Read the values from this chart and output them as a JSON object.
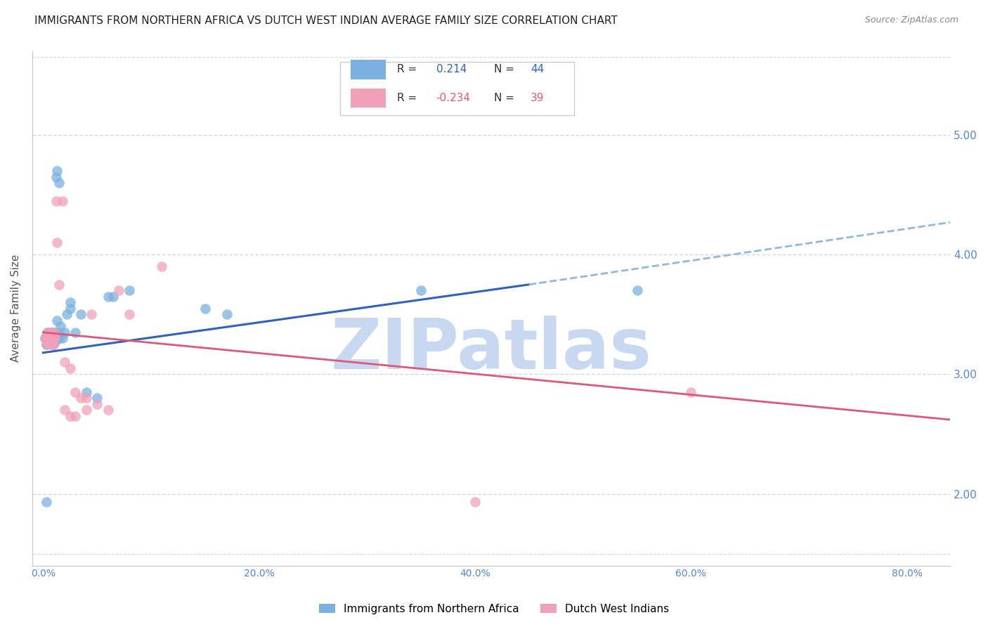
{
  "title": "IMMIGRANTS FROM NORTHERN AFRICA VS DUTCH WEST INDIAN AVERAGE FAMILY SIZE CORRELATION CHART",
  "source": "Source: ZipAtlas.com",
  "xlabel_vals": [
    0.0,
    20.0,
    40.0,
    60.0,
    80.0
  ],
  "ylabel": "Average Family Size",
  "ylim": [
    1.4,
    5.7
  ],
  "xlim": [
    -1.0,
    84.0
  ],
  "blue_scatter_x": [
    0.2,
    0.3,
    0.35,
    0.4,
    0.45,
    0.5,
    0.55,
    0.6,
    0.65,
    0.7,
    0.75,
    0.8,
    0.85,
    0.9,
    0.95,
    1.0,
    1.05,
    1.1,
    1.15,
    1.2,
    1.3,
    1.4,
    1.5,
    1.6,
    1.8,
    2.0,
    2.2,
    2.5,
    3.0,
    3.5,
    4.0,
    5.0,
    6.5,
    8.0,
    1.2,
    1.3,
    1.5,
    2.5,
    15.0,
    17.0,
    35.0,
    55.0,
    0.3,
    6.0
  ],
  "blue_scatter_y": [
    3.3,
    3.25,
    3.3,
    3.35,
    3.3,
    3.28,
    3.32,
    3.3,
    3.35,
    3.3,
    3.28,
    3.3,
    3.35,
    3.3,
    3.25,
    3.3,
    3.35,
    3.3,
    3.28,
    3.32,
    3.45,
    3.35,
    3.3,
    3.4,
    3.3,
    3.35,
    3.5,
    3.55,
    3.35,
    3.5,
    2.85,
    2.8,
    3.65,
    3.7,
    4.65,
    4.7,
    4.6,
    3.6,
    3.55,
    3.5,
    3.7,
    3.7,
    1.93,
    3.65
  ],
  "pink_scatter_x": [
    0.2,
    0.3,
    0.35,
    0.4,
    0.45,
    0.5,
    0.55,
    0.6,
    0.65,
    0.7,
    0.75,
    0.8,
    0.85,
    0.9,
    0.95,
    1.0,
    1.05,
    1.1,
    1.2,
    1.3,
    1.5,
    2.0,
    2.5,
    3.0,
    3.5,
    4.0,
    4.5,
    2.0,
    2.5,
    3.0,
    4.0,
    5.0,
    6.0,
    7.0,
    8.0,
    11.0,
    1.8,
    60.0,
    40.0
  ],
  "pink_scatter_y": [
    3.3,
    3.25,
    3.3,
    3.28,
    3.35,
    3.3,
    3.28,
    3.3,
    3.32,
    3.25,
    3.3,
    3.28,
    3.35,
    3.3,
    3.25,
    3.3,
    3.35,
    3.3,
    4.45,
    4.1,
    3.75,
    3.1,
    3.05,
    2.85,
    2.8,
    2.8,
    3.5,
    2.7,
    2.65,
    2.65,
    2.7,
    2.75,
    2.7,
    3.7,
    3.5,
    3.9,
    4.45,
    2.85,
    1.93
  ],
  "blue_color": "#7ab0e0",
  "pink_color": "#f0a0b8",
  "blue_line_color": "#3060c0",
  "pink_line_color": "#e05878",
  "blue_dash_color": "#90b8e0",
  "axis_color": "#5585d5",
  "grid_color": "#d0d8e8",
  "watermark": "ZIPatlas",
  "watermark_color": "#c8d8f0",
  "blue_line_x0": 0.0,
  "blue_line_y0": 3.18,
  "blue_line_x1": 45.0,
  "blue_line_y1": 3.75,
  "blue_dash_x0": 45.0,
  "blue_dash_y0": 3.75,
  "blue_dash_x1": 84.0,
  "blue_dash_y1": 4.27,
  "pink_line_x0": 0.0,
  "pink_line_y0": 3.35,
  "pink_line_x1": 84.0,
  "pink_line_y1": 2.62,
  "legend_r_blue": "0.214",
  "legend_n_blue": "44",
  "legend_r_pink": "-0.234",
  "legend_n_pink": "39",
  "title_fontsize": 11,
  "source_fontsize": 9
}
